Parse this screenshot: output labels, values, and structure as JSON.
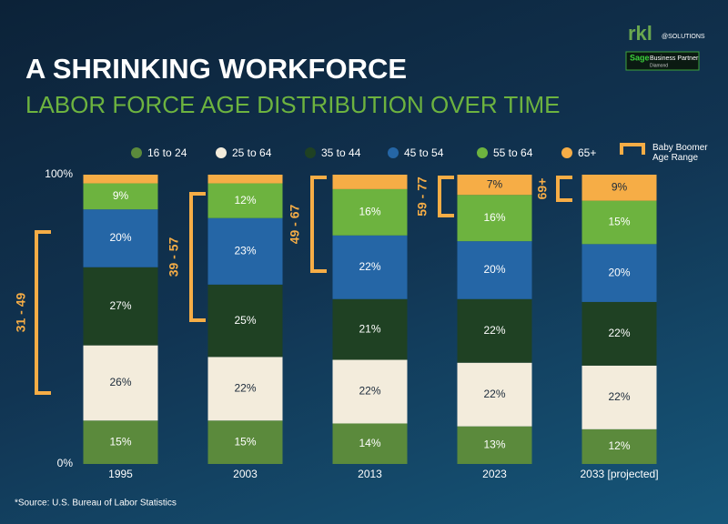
{
  "title": "A SHRINKING WORKFORCE",
  "subtitle": "LABOR FORCE AGE DISTRIBUTION OVER TIME",
  "logo": {
    "brand": "rkl",
    "brand_suffix": "@SOLUTIONS",
    "partner_brand": "Sage",
    "partner_text": "Business Partner",
    "partner_level": "Diamond"
  },
  "source": "*Source: U.S. Bureau of Labor Statistics",
  "chart_data": {
    "type": "stacked_bar",
    "categories": [
      "1995",
      "2003",
      "2013",
      "2023",
      "2033 [projected]"
    ],
    "ylim": [
      0,
      100
    ],
    "yticks": [
      {
        "value": 0,
        "label": "0%"
      },
      {
        "value": 100,
        "label": "100%"
      }
    ],
    "series": [
      {
        "name": "16 to 24",
        "color": "#5b8a3c",
        "values": [
          15,
          15,
          14,
          13,
          12
        ],
        "value_labels": [
          "15%",
          "15%",
          "14%",
          "13%",
          "12%"
        ]
      },
      {
        "name": "25 to 64",
        "color": "#f3ecdc",
        "values": [
          26,
          22,
          22,
          22,
          22
        ],
        "value_labels": [
          "26%",
          "22%",
          "22%",
          "22%",
          "22%"
        ]
      },
      {
        "name": "35 to 44",
        "color": "#1f4123",
        "values": [
          27,
          25,
          21,
          22,
          22
        ],
        "value_labels": [
          "27%",
          "25%",
          "21%",
          "22%",
          "22%"
        ]
      },
      {
        "name": "45 to 54",
        "color": "#2566a6",
        "values": [
          20,
          23,
          22,
          20,
          20
        ],
        "value_labels": [
          "20%",
          "23%",
          "22%",
          "20%",
          "20%"
        ]
      },
      {
        "name": "55 to 64",
        "color": "#6db33f",
        "values": [
          9,
          12,
          16,
          16,
          15
        ],
        "value_labels": [
          "9%",
          "12%",
          "16%",
          "16%",
          "15%"
        ]
      },
      {
        "name": "65+",
        "color": "#f6ad46",
        "values": [
          3,
          3,
          5,
          7,
          9
        ],
        "value_labels": [
          null,
          null,
          null,
          "7%",
          "9%"
        ]
      }
    ],
    "boomer_legend": "Baby Boomer Age Range",
    "boomer_color": "#f6ad46",
    "boomer_ranges": [
      "31 - 49",
      "39 - 57",
      "49 - 67",
      "59 - 77",
      "69+"
    ]
  }
}
